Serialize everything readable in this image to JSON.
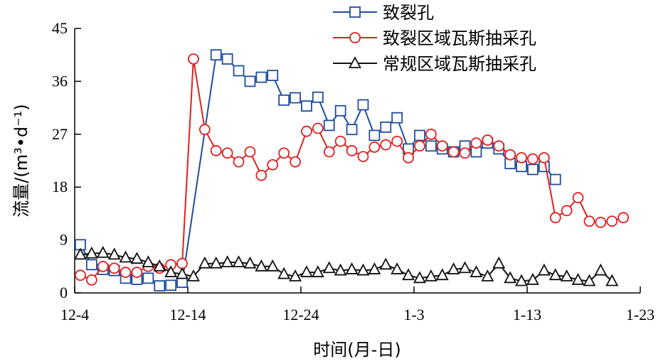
{
  "chart_data": {
    "type": "line",
    "xlabel": "时间(月-日)",
    "ylabel": "流量/(m³•d⁻¹)",
    "x_ticks": [
      "12-4",
      "12-14",
      "12-24",
      "1-3",
      "1-13",
      "1-23"
    ],
    "xlim": [
      0,
      50
    ],
    "ylim": [
      0,
      45
    ],
    "y_ticks": [
      0,
      9,
      18,
      27,
      36,
      45
    ],
    "legend_position": "top-right",
    "grid": false,
    "series": [
      {
        "name": "致裂孔",
        "color": "#1f4e9c",
        "marker": "square",
        "points": [
          [
            0.5,
            8.2
          ],
          [
            1.5,
            4.8
          ],
          [
            2.5,
            4.0
          ],
          [
            3.5,
            3.8
          ],
          [
            4.5,
            2.5
          ],
          [
            5.5,
            2.3
          ],
          [
            6.5,
            2.5
          ],
          [
            7.5,
            1.2
          ],
          [
            8.5,
            1.3
          ],
          [
            9.5,
            1.8
          ],
          [
            12.5,
            40.5
          ],
          [
            13.5,
            39.8
          ],
          [
            14.5,
            37.8
          ],
          [
            15.5,
            36.0
          ],
          [
            16.5,
            36.7
          ],
          [
            17.5,
            37.0
          ],
          [
            18.5,
            32.8
          ],
          [
            19.5,
            33.2
          ],
          [
            20.5,
            31.8
          ],
          [
            21.5,
            33.3
          ],
          [
            22.5,
            28.5
          ],
          [
            23.5,
            31.0
          ],
          [
            24.5,
            27.8
          ],
          [
            25.5,
            32.0
          ],
          [
            26.5,
            26.8
          ],
          [
            27.5,
            28.2
          ],
          [
            28.5,
            29.8
          ],
          [
            29.5,
            24.5
          ],
          [
            30.5,
            26.8
          ],
          [
            31.5,
            25.0
          ],
          [
            32.5,
            24.5
          ],
          [
            33.5,
            24.0
          ],
          [
            34.5,
            25.0
          ],
          [
            35.5,
            24.0
          ],
          [
            36.5,
            25.5
          ],
          [
            37.5,
            24.5
          ],
          [
            38.5,
            22.0
          ],
          [
            39.5,
            21.5
          ],
          [
            40.5,
            21.0
          ],
          [
            41.5,
            21.5
          ],
          [
            42.5,
            19.3
          ]
        ]
      },
      {
        "name": "致裂区域瓦斯抽采孔",
        "color": "#e02020",
        "marker": "circle",
        "points": [
          [
            0.5,
            3.0
          ],
          [
            1.5,
            2.2
          ],
          [
            2.5,
            4.5
          ],
          [
            3.5,
            4.2
          ],
          [
            4.5,
            3.5
          ],
          [
            5.5,
            3.5
          ],
          [
            6.5,
            4.5
          ],
          [
            7.5,
            4.2
          ],
          [
            8.5,
            4.8
          ],
          [
            9.5,
            5.0
          ],
          [
            10.5,
            39.8
          ],
          [
            11.5,
            27.8
          ],
          [
            12.5,
            24.2
          ],
          [
            13.5,
            23.8
          ],
          [
            14.5,
            22.3
          ],
          [
            15.5,
            24.0
          ],
          [
            16.5,
            20.0
          ],
          [
            17.5,
            21.8
          ],
          [
            18.5,
            23.8
          ],
          [
            19.5,
            22.3
          ],
          [
            20.5,
            27.5
          ],
          [
            21.5,
            28.0
          ],
          [
            22.5,
            24.0
          ],
          [
            23.5,
            25.8
          ],
          [
            24.5,
            24.2
          ],
          [
            25.5,
            23.2
          ],
          [
            26.5,
            24.8
          ],
          [
            27.5,
            25.2
          ],
          [
            28.5,
            25.8
          ],
          [
            29.5,
            23.0
          ],
          [
            30.5,
            25.0
          ],
          [
            31.5,
            27.0
          ],
          [
            32.5,
            25.0
          ],
          [
            33.5,
            24.0
          ],
          [
            34.5,
            23.8
          ],
          [
            35.5,
            25.5
          ],
          [
            36.5,
            26.0
          ],
          [
            37.5,
            25.0
          ],
          [
            38.5,
            23.5
          ],
          [
            39.5,
            23.0
          ],
          [
            40.5,
            22.8
          ],
          [
            41.5,
            23.0
          ],
          [
            42.5,
            12.8
          ],
          [
            43.5,
            14.0
          ],
          [
            44.5,
            16.2
          ],
          [
            45.5,
            12.2
          ],
          [
            46.5,
            12.0
          ],
          [
            47.5,
            12.2
          ],
          [
            48.5,
            12.8
          ]
        ]
      },
      {
        "name": "常规区域瓦斯抽采孔",
        "color": "#111111",
        "marker": "triangle",
        "points": [
          [
            0.5,
            6.5
          ],
          [
            1.5,
            6.7
          ],
          [
            2.5,
            6.8
          ],
          [
            3.5,
            6.5
          ],
          [
            4.5,
            6.0
          ],
          [
            5.5,
            5.8
          ],
          [
            6.5,
            5.2
          ],
          [
            7.5,
            4.5
          ],
          [
            8.5,
            3.5
          ],
          [
            9.5,
            3.2
          ],
          [
            10.5,
            2.8
          ],
          [
            11.5,
            5.0
          ],
          [
            12.5,
            5.0
          ],
          [
            13.5,
            5.2
          ],
          [
            14.5,
            5.2
          ],
          [
            15.5,
            5.0
          ],
          [
            16.5,
            4.5
          ],
          [
            17.5,
            4.5
          ],
          [
            18.5,
            3.2
          ],
          [
            19.5,
            2.8
          ],
          [
            20.5,
            3.5
          ],
          [
            21.5,
            3.5
          ],
          [
            22.5,
            4.2
          ],
          [
            23.5,
            3.8
          ],
          [
            24.5,
            4.0
          ],
          [
            25.5,
            3.8
          ],
          [
            26.5,
            4.0
          ],
          [
            27.5,
            4.8
          ],
          [
            28.5,
            4.0
          ],
          [
            29.5,
            3.0
          ],
          [
            30.5,
            2.5
          ],
          [
            31.5,
            2.8
          ],
          [
            32.5,
            3.0
          ],
          [
            33.5,
            4.0
          ],
          [
            34.5,
            4.2
          ],
          [
            35.5,
            3.5
          ],
          [
            36.5,
            2.8
          ],
          [
            37.5,
            5.0
          ],
          [
            38.5,
            2.5
          ],
          [
            39.5,
            2.0
          ],
          [
            40.5,
            2.2
          ],
          [
            41.5,
            3.8
          ],
          [
            42.5,
            3.0
          ],
          [
            43.5,
            2.8
          ],
          [
            44.5,
            2.2
          ],
          [
            45.5,
            2.0
          ],
          [
            46.5,
            3.8
          ],
          [
            47.5,
            2.0
          ]
        ]
      }
    ]
  }
}
